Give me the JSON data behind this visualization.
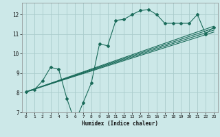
{
  "title": "",
  "xlabel": "Humidex (Indice chaleur)",
  "bg_color": "#cce8e8",
  "grid_color": "#aacccc",
  "line_color": "#1a6b5a",
  "xlim": [
    -0.5,
    23.5
  ],
  "ylim": [
    7.0,
    12.6
  ],
  "yticks": [
    7,
    8,
    9,
    10,
    11,
    12
  ],
  "xticks": [
    0,
    1,
    2,
    3,
    4,
    5,
    6,
    7,
    8,
    9,
    10,
    11,
    12,
    13,
    14,
    15,
    16,
    17,
    18,
    19,
    20,
    21,
    22,
    23
  ],
  "line1_x": [
    0,
    1,
    2,
    3,
    4,
    5,
    6,
    7,
    8,
    9,
    10,
    11,
    12,
    13,
    14,
    15,
    16,
    17,
    18,
    19,
    20,
    21,
    22,
    23
  ],
  "line1_y": [
    8.05,
    8.15,
    8.6,
    9.3,
    9.2,
    7.7,
    6.5,
    7.5,
    8.5,
    10.5,
    10.4,
    11.7,
    11.75,
    12.0,
    12.2,
    12.25,
    12.0,
    11.55,
    11.55,
    11.55,
    11.55,
    12.0,
    11.0,
    11.35
  ],
  "reg_lines": [
    {
      "x": [
        0,
        23
      ],
      "y": [
        8.05,
        11.1
      ]
    },
    {
      "x": [
        0,
        23
      ],
      "y": [
        8.05,
        11.2
      ]
    },
    {
      "x": [
        0,
        23
      ],
      "y": [
        8.05,
        11.3
      ]
    },
    {
      "x": [
        0,
        23
      ],
      "y": [
        8.05,
        11.4
      ]
    }
  ]
}
